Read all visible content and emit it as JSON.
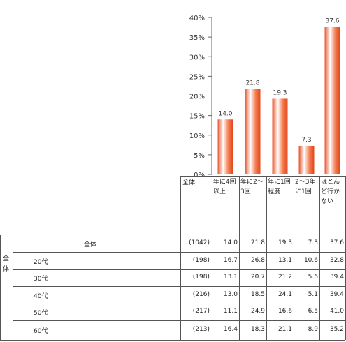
{
  "chart_data": {
    "type": "bar",
    "y_ticks": [
      "40%",
      "35%",
      "30%",
      "25%",
      "20%",
      "15%",
      "10%",
      "5%",
      "0%"
    ],
    "ylim": [
      0,
      40
    ],
    "categories": [
      "年に4回\n以上",
      "年に2～\n3回",
      "年に1回\n程度",
      "2～3年\nに1回",
      "ほとん\nど行か\nない"
    ],
    "values": [
      14.0,
      21.8,
      19.3,
      7.3,
      37.6
    ],
    "value_labels": [
      "14.0",
      "21.8",
      "19.3",
      "7.3",
      "37.6"
    ],
    "bar_color": "#f26b3a"
  },
  "table": {
    "header_label": "全体",
    "group_label": "全\n体",
    "rows": [
      {
        "label": "全体",
        "n": "(1042)",
        "values": [
          "14.0",
          "21.8",
          "19.3",
          "7.3",
          "37.6"
        ]
      },
      {
        "label": "20代",
        "n": "(198)",
        "values": [
          "16.7",
          "26.8",
          "13.1",
          "10.6",
          "32.8"
        ]
      },
      {
        "label": "30代",
        "n": "(198)",
        "values": [
          "13.1",
          "20.7",
          "21.2",
          "5.6",
          "39.4"
        ]
      },
      {
        "label": "40代",
        "n": "(216)",
        "values": [
          "13.0",
          "18.5",
          "24.1",
          "5.1",
          "39.4"
        ]
      },
      {
        "label": "50代",
        "n": "(217)",
        "values": [
          "11.1",
          "24.9",
          "16.6",
          "6.5",
          "41.0"
        ]
      },
      {
        "label": "60代",
        "n": "(213)",
        "values": [
          "16.4",
          "18.3",
          "21.1",
          "8.9",
          "35.2"
        ]
      }
    ]
  }
}
